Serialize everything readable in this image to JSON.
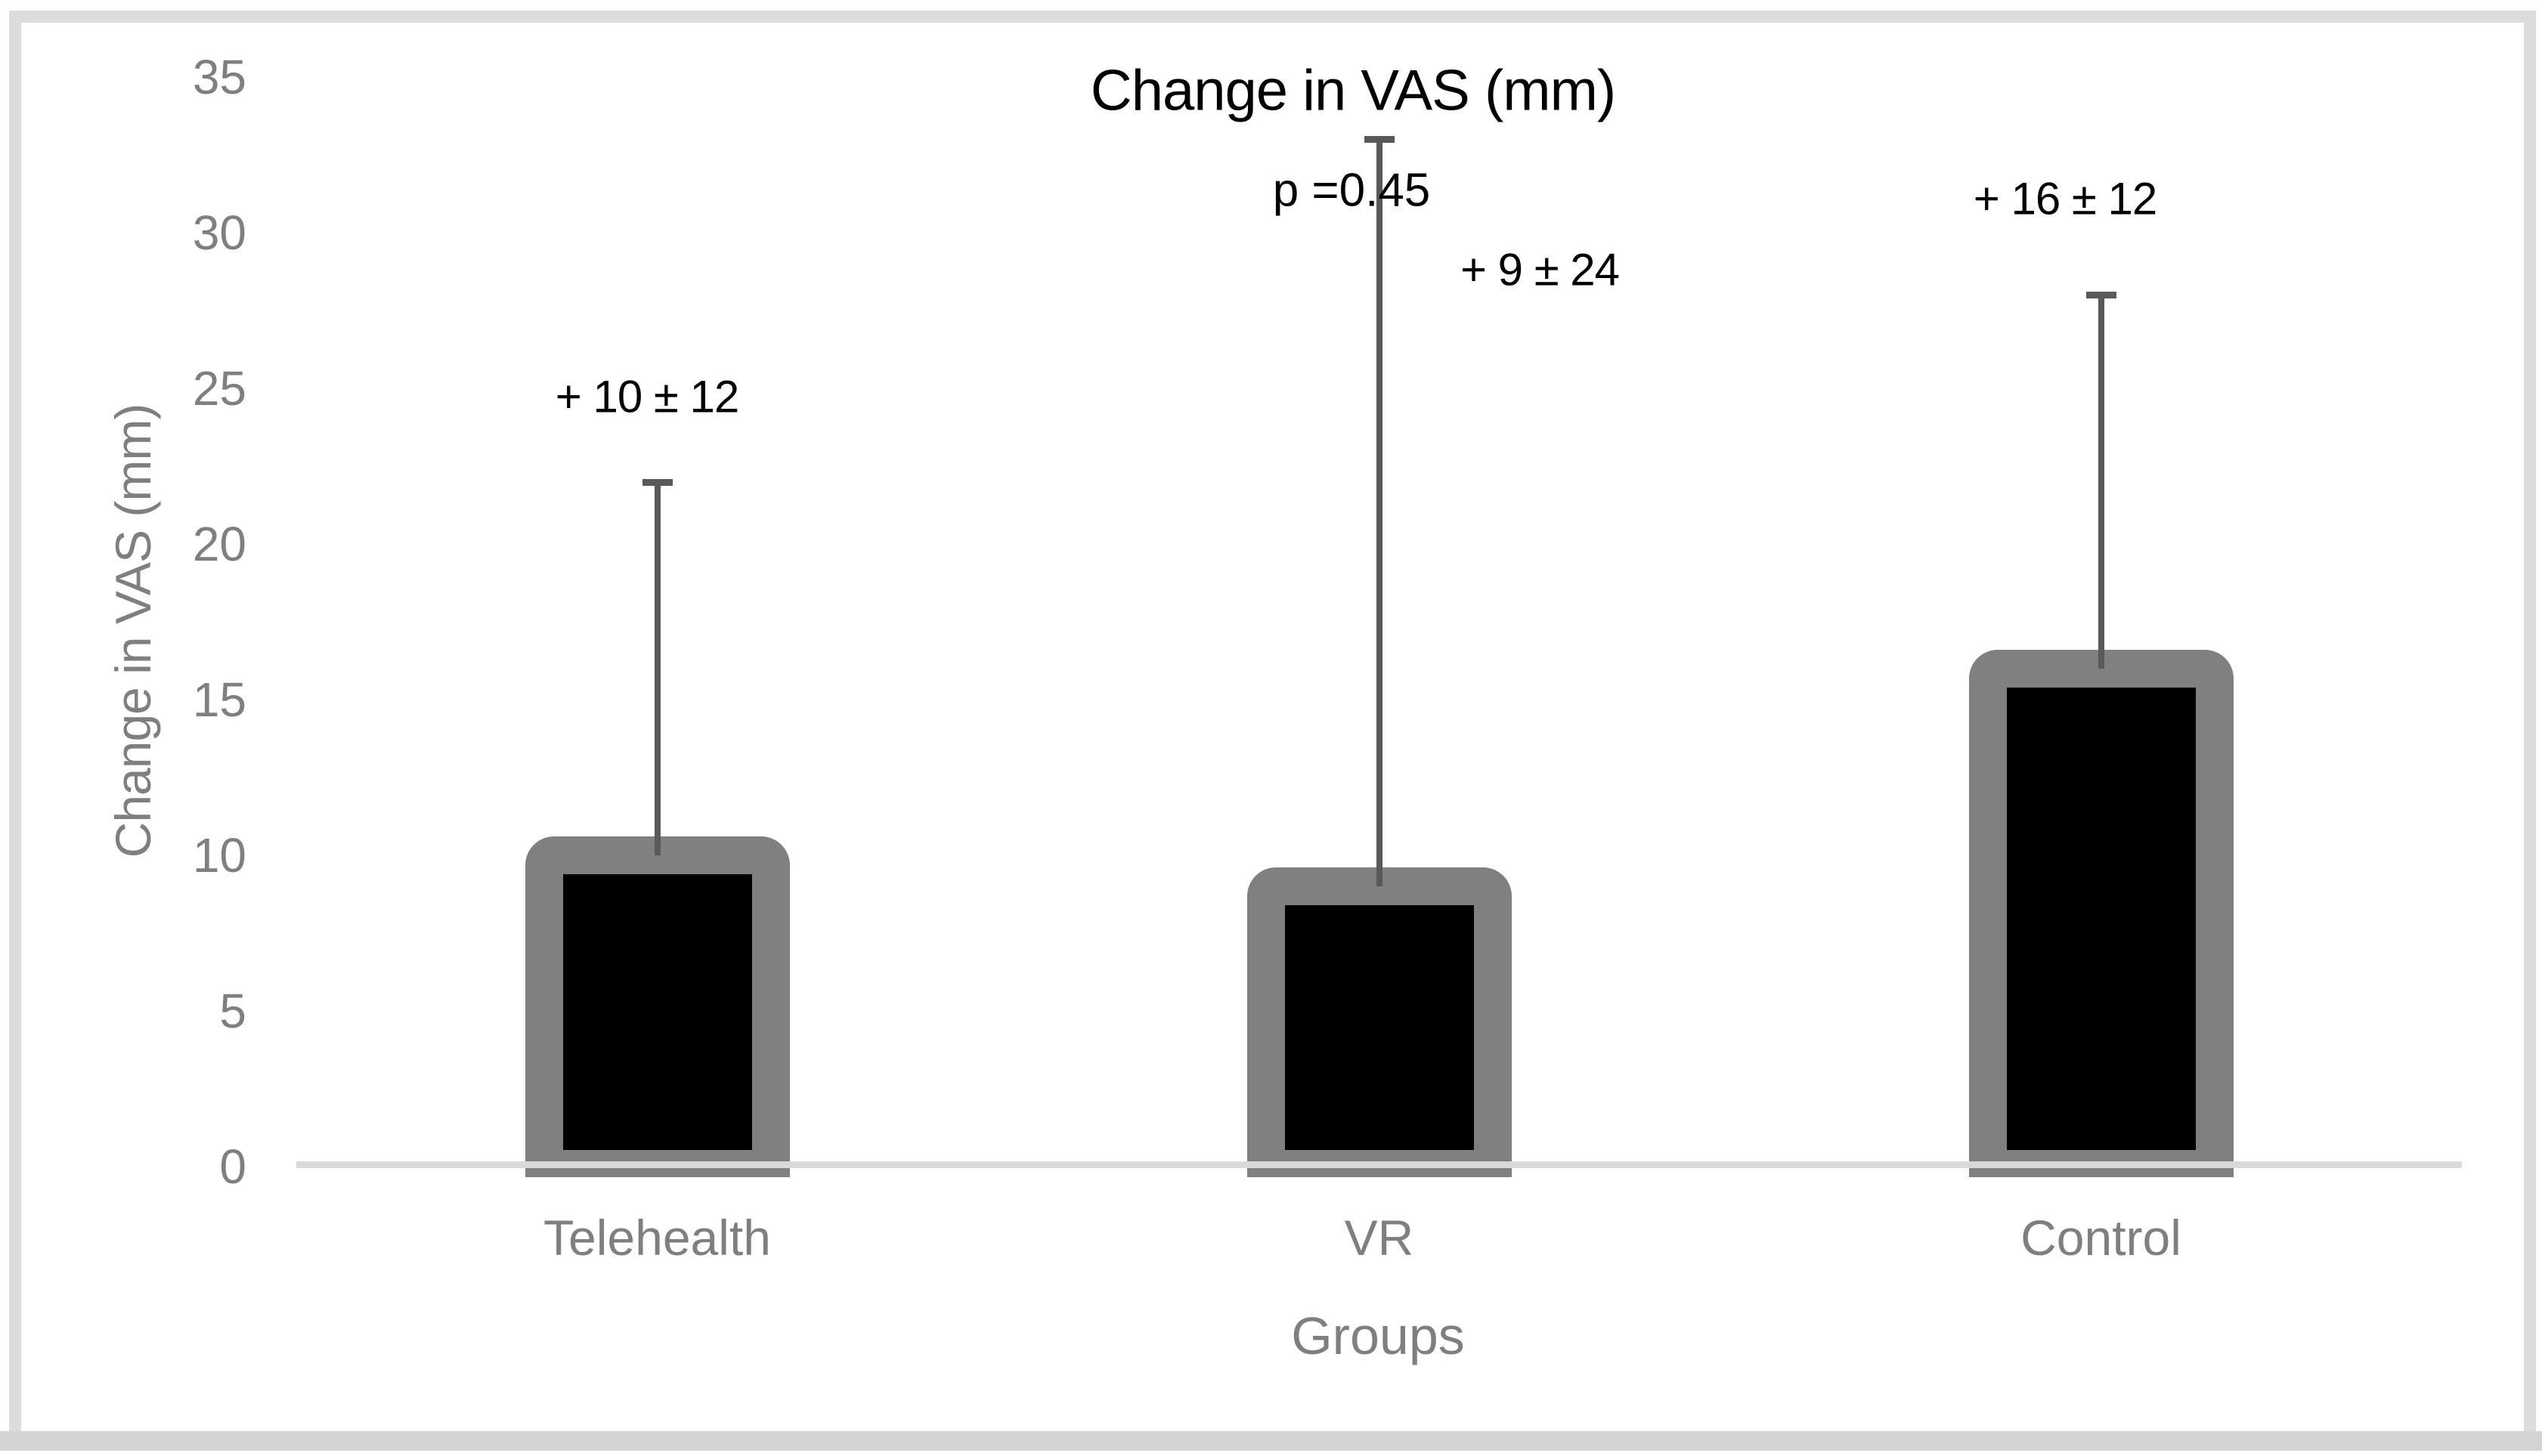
{
  "chart_data": {
    "type": "bar",
    "title": "Change in VAS (mm)",
    "xlabel": "Groups",
    "ylabel": "Change in VAS (mm)",
    "categories": [
      "Telehealth",
      "VR",
      "Control"
    ],
    "values": [
      10,
      9,
      16
    ],
    "errors_plus": [
      12,
      24,
      12
    ],
    "error_tops": [
      22,
      33,
      28
    ],
    "bar_annotations": [
      "+ 10 ± 12",
      "+ 9 ± 24",
      "+ 16 ± 12"
    ],
    "p_value_label": "p =0.45",
    "ylim": [
      0,
      35
    ],
    "yticks": [
      0,
      5,
      10,
      15,
      20,
      25,
      30,
      35
    ],
    "grid": false,
    "legend": "none",
    "colors": {
      "bar_fill": "#000000",
      "bar_border": "#808080",
      "error_bar": "#595959",
      "axis_line": "#d9d9d9",
      "axis_text": "#7f7f7f",
      "title_text": "#000000",
      "figure_frame": "#dcdcdc"
    }
  }
}
